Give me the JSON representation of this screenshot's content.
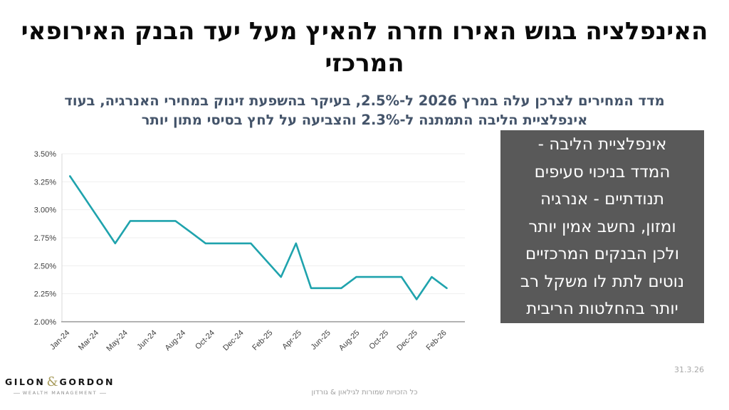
{
  "slide": {
    "title_line1": "האינפלציה בגוש האירו חזרה להאיץ מעל יעד הבנק האירופאי",
    "title_line2": "המרכזי",
    "subtitle_line1": "מדד המחירים לצרכן עלה במרץ 2026 ל-2.5%, בעיקר בהשפעת זינוק במחירי האנרגיה, בעוד",
    "subtitle_line2": "אינפלציית הליבה התמתנה ל-2.3% והצביעה על לחץ בסיסי מתון יותר",
    "copyright": "כל הזכויות שמורות לגילאון & גורדון",
    "date": "31.3.26"
  },
  "infobox": {
    "bg_color": "#595959",
    "text_color": "#FFFFFF",
    "lines": [
      "אינפלציית הליבה -",
      "המדד בניכוי סעיפים",
      "תנודתיים - אנרגיה",
      "ומזון, נחשב אמין יותר",
      "ולכן הבנקים המרכזיים",
      "נוטים לתת לו משקל רב",
      "יותר בהחלטות הריבית"
    ]
  },
  "logo": {
    "name_left": "GILON",
    "ampersand": "&",
    "name_right": "GORDON",
    "tagline": "WEALTH MANAGEMENT",
    "ampersand_color": "#A79B5C"
  },
  "chart_data": {
    "type": "line",
    "title": "",
    "xlabel": "",
    "ylabel": "",
    "ylim": [
      2.0,
      3.5
    ],
    "grid": true,
    "legend": "none",
    "line_color": "#1FA3AD",
    "y_tick_labels": [
      "2.00%",
      "2.25%",
      "2.50%",
      "2.75%",
      "3.00%",
      "3.25%",
      "3.50%"
    ],
    "x_tick_labels": [
      "Jan-24",
      "Mar-24",
      "May-24",
      "Jun-24",
      "Aug-24",
      "Oct-24",
      "Dec-24",
      "Feb-25",
      "Apr-25",
      "Jun-25",
      "Aug-25",
      "Oct-25",
      "Dec-25",
      "Feb-26"
    ],
    "months": [
      "Jan-24",
      "Feb-24",
      "Mar-24",
      "Apr-24",
      "May-24",
      "Jun-24",
      "Jul-24",
      "Aug-24",
      "Sep-24",
      "Oct-24",
      "Nov-24",
      "Dec-24",
      "Jan-25",
      "Feb-25",
      "Mar-25",
      "Apr-25",
      "May-25",
      "Jun-25",
      "Jul-25",
      "Aug-25",
      "Sep-25",
      "Oct-25",
      "Nov-25",
      "Dec-25",
      "Jan-26",
      "Feb-26"
    ],
    "values": [
      3.3,
      3.1,
      2.9,
      2.7,
      2.9,
      2.9,
      2.9,
      2.9,
      2.8,
      2.7,
      2.7,
      2.7,
      2.7,
      2.55,
      2.4,
      2.7,
      2.3,
      2.3,
      2.3,
      2.4,
      2.4,
      2.4,
      2.4,
      2.2,
      2.4,
      2.3
    ]
  }
}
